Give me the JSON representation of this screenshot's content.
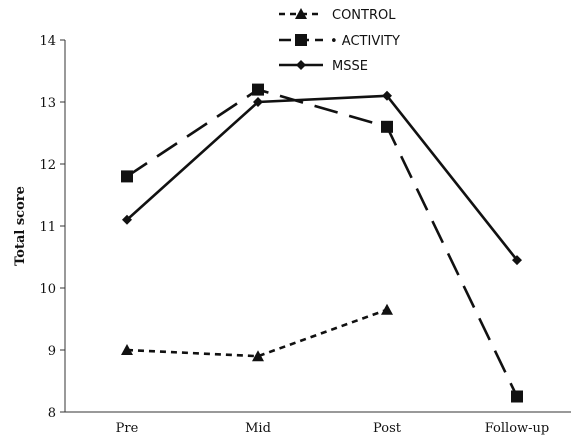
{
  "chart_data": {
    "type": "line",
    "title": "",
    "xlabel": "",
    "ylabel": "Total score",
    "ylim": [
      8,
      14
    ],
    "yticks": [
      8,
      9,
      10,
      11,
      12,
      13,
      14
    ],
    "categories": [
      "Pre",
      "Mid",
      "Post",
      "Follow-up"
    ],
    "grid": false,
    "legend_position": "top",
    "series": [
      {
        "name": "CONTROL",
        "marker": "triangle",
        "line_style": "short-dash",
        "values": [
          9.0,
          8.9,
          9.65,
          null
        ]
      },
      {
        "name": "ACTIVITY",
        "legend_dot": "•",
        "marker": "square",
        "line_style": "long-dash",
        "values": [
          11.8,
          13.2,
          12.6,
          8.25
        ]
      },
      {
        "name": "MSSE",
        "marker": "diamond",
        "line_style": "solid",
        "values": [
          11.1,
          13.0,
          13.1,
          10.45
        ]
      }
    ]
  }
}
